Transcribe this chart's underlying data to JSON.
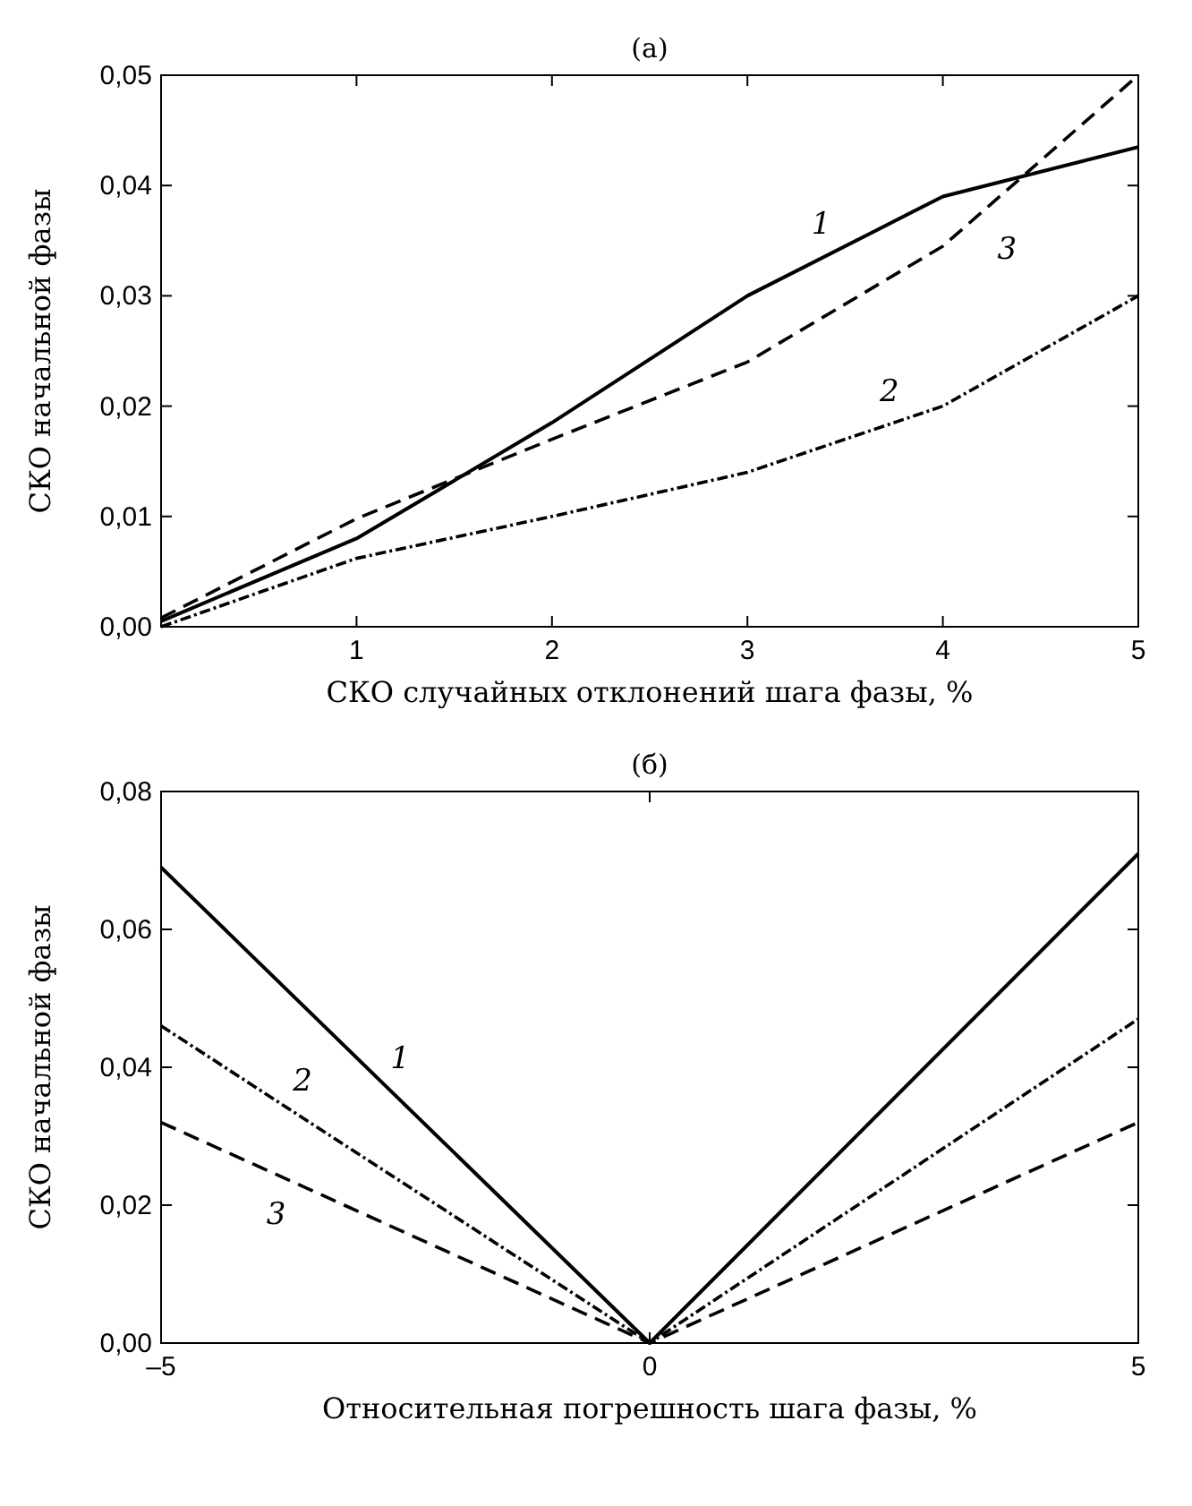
{
  "chart_data": [
    {
      "type": "line",
      "title": "(а)",
      "xlabel": "СКО случайных отклонений шага фазы, %",
      "ylabel": "СКО начальной фазы",
      "xlim": [
        0,
        5
      ],
      "xticks": [
        1,
        2,
        3,
        4,
        5
      ],
      "ylim": [
        0,
        0.05
      ],
      "yticks": [
        {
          "value": 0,
          "label": "0,00"
        },
        {
          "value": 0.01,
          "label": "0,01"
        },
        {
          "value": 0.02,
          "label": "0,02"
        },
        {
          "value": 0.03,
          "label": "0,03"
        },
        {
          "value": 0.04,
          "label": "0,04"
        },
        {
          "value": 0.05,
          "label": "0,05"
        }
      ],
      "x": [
        0,
        1,
        2,
        3,
        4,
        5
      ],
      "series": [
        {
          "name": "1",
          "color": "#000000",
          "line_style": "solid",
          "values": [
            0.0005,
            0.008,
            0.0185,
            0.03,
            0.039,
            0.0435
          ]
        },
        {
          "name": "2",
          "color": "#000000",
          "line_style": "dotted",
          "values": [
            0,
            0.0062,
            0.01,
            0.014,
            0.02,
            0.03
          ]
        },
        {
          "name": "3",
          "color": "#000000",
          "line_style": "dashed",
          "values": [
            0.0008,
            0.0098,
            0.017,
            0.024,
            0.0345,
            0.05
          ]
        }
      ]
    },
    {
      "type": "line",
      "title": "(б)",
      "xlabel": "Относительная погрешность шага фазы, %",
      "ylabel": "СКО начальной фазы",
      "xlim": [
        -5,
        5
      ],
      "xticks": [
        {
          "value": -5,
          "label": "–5"
        },
        0,
        5
      ],
      "ylim": [
        0,
        0.08
      ],
      "yticks": [
        {
          "value": 0,
          "label": "0,00"
        },
        {
          "value": 0.02,
          "label": "0,02"
        },
        {
          "value": 0.04,
          "label": "0,04"
        },
        {
          "value": 0.06,
          "label": "0,06"
        },
        {
          "value": 0.08,
          "label": "0,08"
        }
      ],
      "x": [
        -5,
        0,
        5
      ],
      "series": [
        {
          "name": "1",
          "color": "#000000",
          "line_style": "solid",
          "values": [
            0.069,
            0,
            0.071
          ]
        },
        {
          "name": "2",
          "color": "#000000",
          "line_style": "dotted",
          "values": [
            0.046,
            0,
            0.047
          ]
        },
        {
          "name": "3",
          "color": "#000000",
          "line_style": "dashed",
          "values": [
            0.032,
            0,
            0.032
          ]
        }
      ]
    }
  ]
}
